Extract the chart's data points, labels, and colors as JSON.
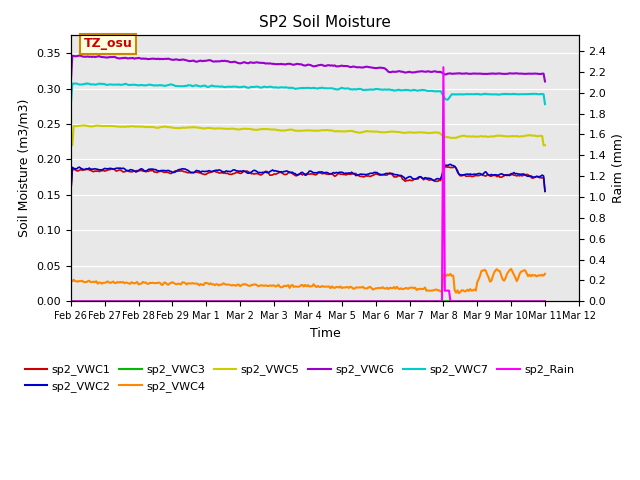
{
  "title": "SP2 Soil Moisture",
  "xlabel": "Time",
  "ylabel_left": "Soil Moisture (m3/m3)",
  "ylabel_right": "Raim (mm)",
  "ylim_left": [
    0.0,
    0.375
  ],
  "ylim_right": [
    0.0,
    2.55
  ],
  "xtick_labels": [
    "Feb 26",
    "Feb 27",
    "Feb 28",
    "Feb 29",
    "Mar 1",
    "Mar 2",
    "Mar 3",
    "Mar 4",
    "Mar 5",
    "Mar 6",
    "Mar 7",
    "Mar 8",
    "Mar 9",
    "Mar 10",
    "Mar 11",
    "Mar 12"
  ],
  "yticks_left": [
    0.0,
    0.05,
    0.1,
    0.15,
    0.2,
    0.25,
    0.3,
    0.35
  ],
  "yticks_right": [
    0.0,
    0.2,
    0.4,
    0.6,
    0.8,
    1.0,
    1.2,
    1.4,
    1.6,
    1.8,
    2.0,
    2.2,
    2.4
  ],
  "background_color": "#e8e8e8",
  "series": {
    "sp2_VWC1": {
      "color": "#cc0000",
      "linewidth": 1.2
    },
    "sp2_VWC2": {
      "color": "#0000cc",
      "linewidth": 1.2
    },
    "sp2_VWC3": {
      "color": "#00bb00",
      "linewidth": 1.2
    },
    "sp2_VWC4": {
      "color": "#ff8800",
      "linewidth": 1.5
    },
    "sp2_VWC5": {
      "color": "#cccc00",
      "linewidth": 1.5
    },
    "sp2_VWC6": {
      "color": "#9900cc",
      "linewidth": 1.5
    },
    "sp2_VWC7": {
      "color": "#00cccc",
      "linewidth": 1.5
    },
    "sp2_Rain": {
      "color": "#ff00ff",
      "linewidth": 1.5
    }
  },
  "tz_label": "TZ_osu",
  "figsize": [
    6.4,
    4.8
  ],
  "dpi": 100
}
